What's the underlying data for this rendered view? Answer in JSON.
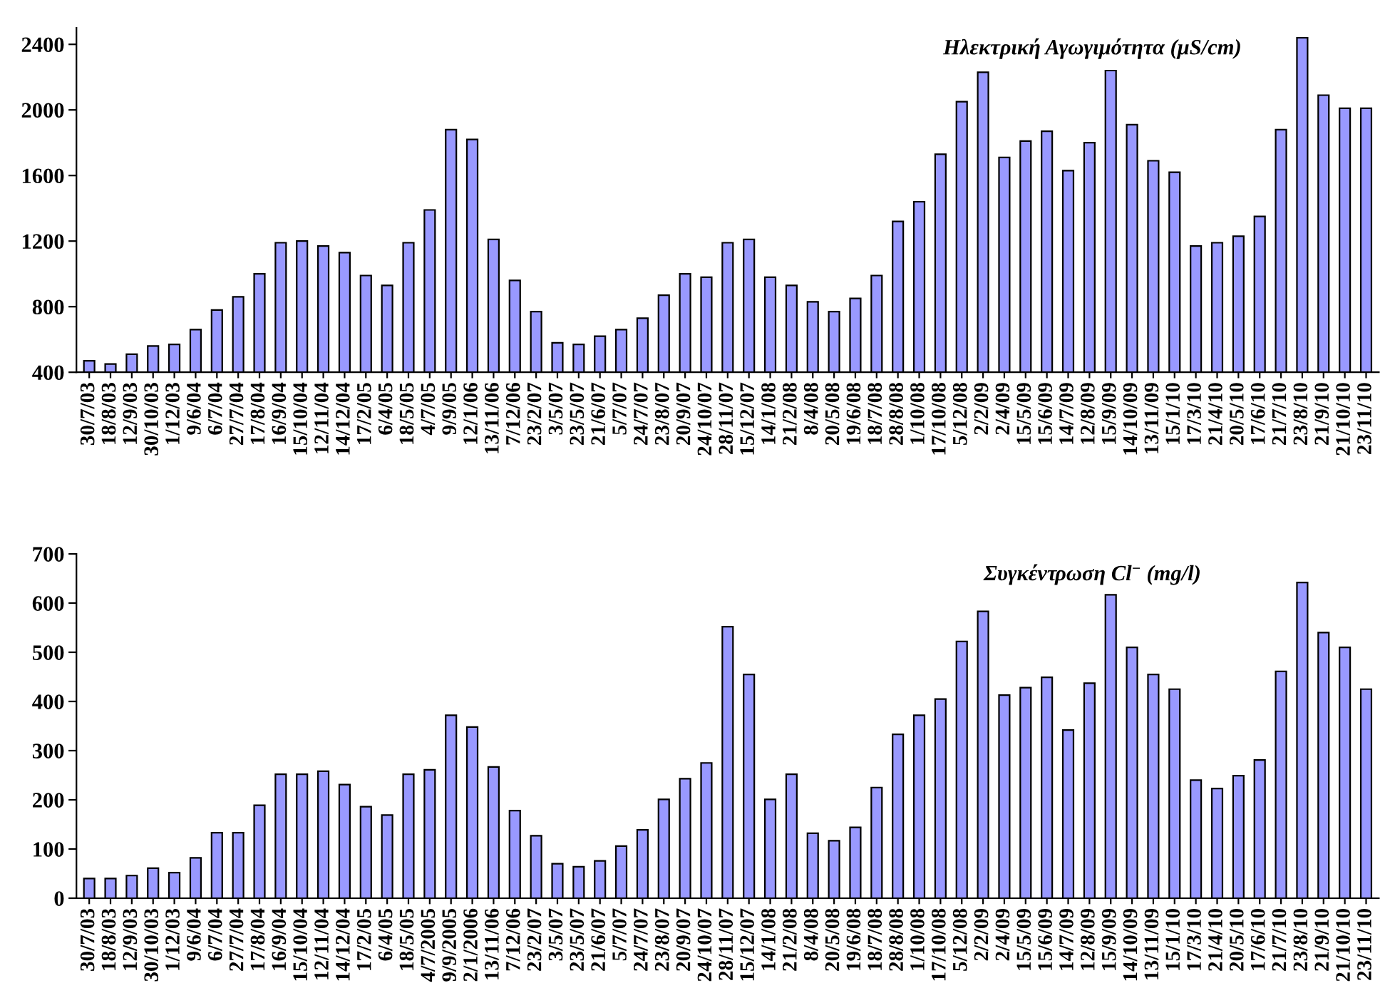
{
  "chart_data": [
    {
      "type": "bar",
      "title": "Ηλεκτρική Αγωγιμότητα (μS/cm)",
      "color": "#9999ff",
      "ylim": [
        400,
        2500
      ],
      "yticks": [
        400,
        800,
        1200,
        1600,
        2000,
        2400
      ],
      "grid": false,
      "categories": [
        "30/7/03",
        "18/8/03",
        "12/9/03",
        "30/10/03",
        "1/12/03",
        "9/6/04",
        "6/7/04",
        "27/7/04",
        "17/8/04",
        "16/9/04",
        "15/10/04",
        "12/11/04",
        "14/12/04",
        "17/2/05",
        "6/4/05",
        "18/5/05",
        "4/7/05",
        "9/9/05",
        "12/1/06",
        "13/11/06",
        "7/12/06",
        "23/2/07",
        "3/5/07",
        "23/5/07",
        "21/6/07",
        "5/7/07",
        "24/7/07",
        "23/8/07",
        "20/9/07",
        "24/10/07",
        "28/11/07",
        "15/12/07",
        "14/1/08",
        "21/2/08",
        "8/4/08",
        "20/5/08",
        "19/6/08",
        "18/7/08",
        "28/8/08",
        "1/10/08",
        "17/10/08",
        "5/12/08",
        "2/2/09",
        "2/4/09",
        "15/5/09",
        "15/6/09",
        "14/7/09",
        "12/8/09",
        "15/9/09",
        "14/10/09",
        "13/11/09",
        "15/1/10",
        "17/3/10",
        "21/4/10",
        "20/5/10",
        "17/6/10",
        "21/7/10",
        "23/8/10",
        "21/9/10",
        "21/10/10",
        "23/11/10"
      ],
      "values": [
        470,
        450,
        510,
        560,
        570,
        660,
        780,
        860,
        1000,
        1190,
        1200,
        1170,
        1130,
        990,
        930,
        1190,
        1390,
        1880,
        1820,
        1210,
        960,
        770,
        580,
        570,
        620,
        660,
        730,
        870,
        1000,
        980,
        1190,
        1210,
        980,
        930,
        830,
        770,
        850,
        990,
        1320,
        1440,
        1730,
        2050,
        2230,
        1710,
        1810,
        1870,
        1630,
        1800,
        2240,
        1910,
        1690,
        1620,
        1170,
        1190,
        1230,
        1350,
        1880,
        2440,
        2090,
        2010,
        2010
      ]
    },
    {
      "type": "bar",
      "title": "Συγκέντρωση Cl$^{−}$ (mg/l)",
      "color": "#9999ff",
      "ylim": [
        0,
        700
      ],
      "yticks": [
        0,
        100,
        200,
        300,
        400,
        500,
        600,
        700
      ],
      "grid": false,
      "categories": [
        "30/7/03",
        "18/8/03",
        "12/9/03",
        "30/10/03",
        "1/12/03",
        "9/6/04",
        "6/7/04",
        "27/7/04",
        "17/8/04",
        "16/9/04",
        "15/10/04",
        "12/11/04",
        "14/12/04",
        "17/2/05",
        "6/4/05",
        "18/5/05",
        "4/7/2005",
        "9/9/2005",
        "2/1/2006",
        "13/11/06",
        "7/12/06",
        "23/2/07",
        "3/5/07",
        "23/5/07",
        "21/6/07",
        "5/7/07",
        "24/7/07",
        "23/8/07",
        "20/9/07",
        "24/10/07",
        "28/11/07",
        "15/12/07",
        "14/1/08",
        "21/2/08",
        "8/4/08",
        "20/5/08",
        "19/6/08",
        "18/7/08",
        "28/8/08",
        "1/10/08",
        "17/10/08",
        "5/12/08",
        "2/2/09",
        "2/4/09",
        "15/5/09",
        "15/6/09",
        "14/7/09",
        "12/8/09",
        "15/9/09",
        "14/10/09",
        "13/11/09",
        "15/1/10",
        "17/3/10",
        "21/4/10",
        "20/5/10",
        "17/6/10",
        "21/7/10",
        "23/8/10",
        "21/9/10",
        "21/10/10",
        "23/11/10"
      ],
      "values": [
        40,
        40,
        46,
        61,
        52,
        82,
        133,
        133,
        189,
        252,
        252,
        258,
        231,
        186,
        169,
        252,
        261,
        372,
        348,
        267,
        178,
        127,
        70,
        64,
        76,
        106,
        139,
        201,
        243,
        275,
        552,
        455,
        201,
        252,
        132,
        117,
        144,
        225,
        333,
        372,
        405,
        522,
        583,
        413,
        428,
        449,
        342,
        437,
        617,
        510,
        455,
        425,
        240,
        223,
        249,
        281,
        461,
        642,
        540,
        510,
        425
      ]
    }
  ]
}
